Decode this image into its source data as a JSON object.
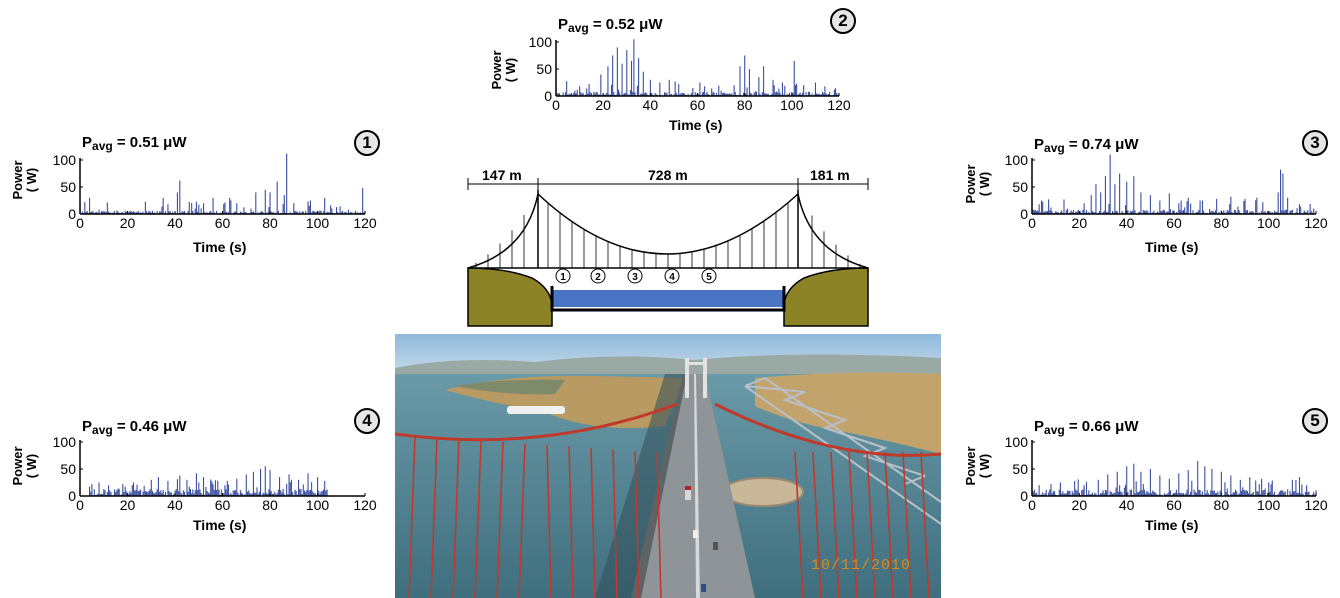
{
  "chart_data": [
    {
      "type": "bar",
      "id": "1",
      "badge": "1",
      "title": "P",
      "title_sub": "avg",
      "title_rest": " = 0.51 μW",
      "xlabel": "Time (s)",
      "ylabel": "Power\n( W)",
      "xlim": [
        0,
        120
      ],
      "ylim": [
        0,
        100
      ],
      "xticks": [
        "0",
        "20",
        "40",
        "60",
        "80",
        "100",
        "120"
      ],
      "yticks": [
        "0",
        "50",
        "100"
      ],
      "color": "#3b4fa0",
      "peaks": [
        {
          "t": 2,
          "v": 22
        },
        {
          "t": 4,
          "v": 30
        },
        {
          "t": 8,
          "v": 8
        },
        {
          "t": 35,
          "v": 30
        },
        {
          "t": 37,
          "v": 18
        },
        {
          "t": 41,
          "v": 40
        },
        {
          "t": 42,
          "v": 62
        },
        {
          "t": 46,
          "v": 22
        },
        {
          "t": 52,
          "v": 20
        },
        {
          "t": 56,
          "v": 30
        },
        {
          "t": 63,
          "v": 30
        },
        {
          "t": 66,
          "v": 20
        },
        {
          "t": 74,
          "v": 40
        },
        {
          "t": 78,
          "v": 45
        },
        {
          "t": 80,
          "v": 40
        },
        {
          "t": 83,
          "v": 60
        },
        {
          "t": 86,
          "v": 35
        },
        {
          "t": 87,
          "v": 112
        },
        {
          "t": 90,
          "v": 20
        },
        {
          "t": 97,
          "v": 25
        },
        {
          "t": 103,
          "v": 30
        },
        {
          "t": 113,
          "v": 8
        },
        {
          "t": 119,
          "v": 48
        }
      ],
      "baseline": 6,
      "seed": 11
    },
    {
      "type": "bar",
      "id": "2",
      "badge": "2",
      "title": "P",
      "title_sub": "avg",
      "title_rest": " = 0.52 μW",
      "xlabel": "Time (s)",
      "ylabel": "Power\n( W)",
      "xlim": [
        0,
        120
      ],
      "ylim": [
        0,
        100
      ],
      "xticks": [
        "0",
        "20",
        "40",
        "60",
        "80",
        "100",
        "120"
      ],
      "yticks": [
        "0",
        "50",
        "100"
      ],
      "color": "#3b4fa0",
      "peaks": [
        {
          "t": 8,
          "v": 10
        },
        {
          "t": 14,
          "v": 22
        },
        {
          "t": 19,
          "v": 40
        },
        {
          "t": 22,
          "v": 55
        },
        {
          "t": 24,
          "v": 75
        },
        {
          "t": 26,
          "v": 90
        },
        {
          "t": 28,
          "v": 60
        },
        {
          "t": 30,
          "v": 85
        },
        {
          "t": 32,
          "v": 65
        },
        {
          "t": 33,
          "v": 105
        },
        {
          "t": 35,
          "v": 70
        },
        {
          "t": 37,
          "v": 45
        },
        {
          "t": 40,
          "v": 30
        },
        {
          "t": 44,
          "v": 25
        },
        {
          "t": 48,
          "v": 30
        },
        {
          "t": 52,
          "v": 22
        },
        {
          "t": 58,
          "v": 15
        },
        {
          "t": 63,
          "v": 18
        },
        {
          "t": 70,
          "v": 10
        },
        {
          "t": 78,
          "v": 55
        },
        {
          "t": 80,
          "v": 75
        },
        {
          "t": 82,
          "v": 50
        },
        {
          "t": 86,
          "v": 35
        },
        {
          "t": 88,
          "v": 55
        },
        {
          "t": 92,
          "v": 30
        },
        {
          "t": 96,
          "v": 25
        },
        {
          "t": 101,
          "v": 65
        },
        {
          "t": 105,
          "v": 20
        },
        {
          "t": 110,
          "v": 25
        },
        {
          "t": 114,
          "v": 18
        },
        {
          "t": 118,
          "v": 12
        }
      ],
      "baseline": 8,
      "seed": 23
    },
    {
      "type": "bar",
      "id": "3",
      "badge": "3",
      "title": "P",
      "title_sub": "avg",
      "title_rest": " = 0.74 μW",
      "xlabel": "Time (s)",
      "ylabel": "Power\n( W)",
      "xlim": [
        0,
        120
      ],
      "ylim": [
        0,
        100
      ],
      "xticks": [
        "0",
        "20",
        "40",
        "60",
        "80",
        "100",
        "120"
      ],
      "yticks": [
        "0",
        "50",
        "100"
      ],
      "color": "#3b4fa0",
      "peaks": [
        {
          "t": 3,
          "v": 18
        },
        {
          "t": 8,
          "v": 12
        },
        {
          "t": 15,
          "v": 10
        },
        {
          "t": 22,
          "v": 20
        },
        {
          "t": 25,
          "v": 35
        },
        {
          "t": 27,
          "v": 55
        },
        {
          "t": 29,
          "v": 40
        },
        {
          "t": 31,
          "v": 70
        },
        {
          "t": 33,
          "v": 110
        },
        {
          "t": 35,
          "v": 55
        },
        {
          "t": 37,
          "v": 75
        },
        {
          "t": 40,
          "v": 60
        },
        {
          "t": 43,
          "v": 70
        },
        {
          "t": 46,
          "v": 40
        },
        {
          "t": 50,
          "v": 35
        },
        {
          "t": 54,
          "v": 25
        },
        {
          "t": 58,
          "v": 38
        },
        {
          "t": 62,
          "v": 20
        },
        {
          "t": 66,
          "v": 30
        },
        {
          "t": 72,
          "v": 25
        },
        {
          "t": 78,
          "v": 28
        },
        {
          "t": 84,
          "v": 32
        },
        {
          "t": 90,
          "v": 28
        },
        {
          "t": 95,
          "v": 30
        },
        {
          "t": 104,
          "v": 40
        },
        {
          "t": 105,
          "v": 82
        },
        {
          "t": 106,
          "v": 75
        },
        {
          "t": 108,
          "v": 30
        },
        {
          "t": 113,
          "v": 18
        },
        {
          "t": 119,
          "v": 10
        }
      ],
      "baseline": 8,
      "seed": 37
    },
    {
      "type": "bar",
      "id": "4",
      "badge": "4",
      "title": "P",
      "title_sub": "avg",
      "title_rest": " = 0.46 μW",
      "xlabel": "Time (s)",
      "ylabel": "Power\n( W)",
      "xlim": [
        0,
        120
      ],
      "ylim": [
        0,
        100
      ],
      "xticks": [
        "0",
        "20",
        "40",
        "60",
        "80",
        "100",
        "120"
      ],
      "yticks": [
        "0",
        "50",
        "100"
      ],
      "color": "#3b4fa0",
      "peaks": [
        {
          "t": 5,
          "v": 22
        },
        {
          "t": 8,
          "v": 25
        },
        {
          "t": 12,
          "v": 20
        },
        {
          "t": 18,
          "v": 22
        },
        {
          "t": 22,
          "v": 20
        },
        {
          "t": 30,
          "v": 30
        },
        {
          "t": 33,
          "v": 35
        },
        {
          "t": 37,
          "v": 28
        },
        {
          "t": 42,
          "v": 38
        },
        {
          "t": 45,
          "v": 30
        },
        {
          "t": 49,
          "v": 42
        },
        {
          "t": 52,
          "v": 35
        },
        {
          "t": 56,
          "v": 22
        },
        {
          "t": 62,
          "v": 28
        },
        {
          "t": 66,
          "v": 32
        },
        {
          "t": 70,
          "v": 40
        },
        {
          "t": 73,
          "v": 45
        },
        {
          "t": 76,
          "v": 50
        },
        {
          "t": 78,
          "v": 55
        },
        {
          "t": 80,
          "v": 48
        },
        {
          "t": 84,
          "v": 35
        },
        {
          "t": 88,
          "v": 40
        },
        {
          "t": 92,
          "v": 30
        },
        {
          "t": 96,
          "v": 42
        },
        {
          "t": 100,
          "v": 35
        },
        {
          "t": 103,
          "v": 28
        }
      ],
      "baseline": 14,
      "seed": 41,
      "xrange_data": [
        4,
        104
      ]
    },
    {
      "type": "bar",
      "id": "5",
      "badge": "5",
      "title": "P",
      "title_sub": "avg",
      "title_rest": " = 0.66 μW",
      "xlabel": "Time (s)",
      "ylabel": "Power\n( W)",
      "xlim": [
        0,
        120
      ],
      "ylim": [
        0,
        100
      ],
      "xticks": [
        "0",
        "20",
        "40",
        "60",
        "80",
        "100",
        "120"
      ],
      "yticks": [
        "0",
        "50",
        "100"
      ],
      "color": "#3b4fa0",
      "peaks": [
        {
          "t": 3,
          "v": 20
        },
        {
          "t": 8,
          "v": 22
        },
        {
          "t": 12,
          "v": 25
        },
        {
          "t": 18,
          "v": 28
        },
        {
          "t": 22,
          "v": 20
        },
        {
          "t": 28,
          "v": 30
        },
        {
          "t": 32,
          "v": 40
        },
        {
          "t": 36,
          "v": 45
        },
        {
          "t": 40,
          "v": 55
        },
        {
          "t": 43,
          "v": 60
        },
        {
          "t": 46,
          "v": 45
        },
        {
          "t": 50,
          "v": 50
        },
        {
          "t": 54,
          "v": 38
        },
        {
          "t": 58,
          "v": 32
        },
        {
          "t": 62,
          "v": 42
        },
        {
          "t": 66,
          "v": 48
        },
        {
          "t": 70,
          "v": 65
        },
        {
          "t": 73,
          "v": 55
        },
        {
          "t": 76,
          "v": 50
        },
        {
          "t": 80,
          "v": 45
        },
        {
          "t": 84,
          "v": 38
        },
        {
          "t": 88,
          "v": 30
        },
        {
          "t": 92,
          "v": 35
        },
        {
          "t": 96,
          "v": 22
        },
        {
          "t": 100,
          "v": 25
        },
        {
          "t": 110,
          "v": 30
        },
        {
          "t": 113,
          "v": 35
        },
        {
          "t": 116,
          "v": 20
        }
      ],
      "baseline": 12,
      "seed": 53
    }
  ],
  "diagram": {
    "span_left": "147 m",
    "span_main": "728 m",
    "span_right": "181 m",
    "sensor_labels": [
      "1",
      "2",
      "3",
      "4",
      "5"
    ],
    "colors": {
      "earth": "#8c8326",
      "water": "#4a74c4",
      "outline": "#000000"
    }
  },
  "photo": {
    "date_stamp": "10/11/2010",
    "colors": {
      "sky": "#9ec3df",
      "water": "#4e7d8c",
      "hills": "#b89a62",
      "cables": "#c0392b",
      "deck": "#8e9497"
    }
  }
}
